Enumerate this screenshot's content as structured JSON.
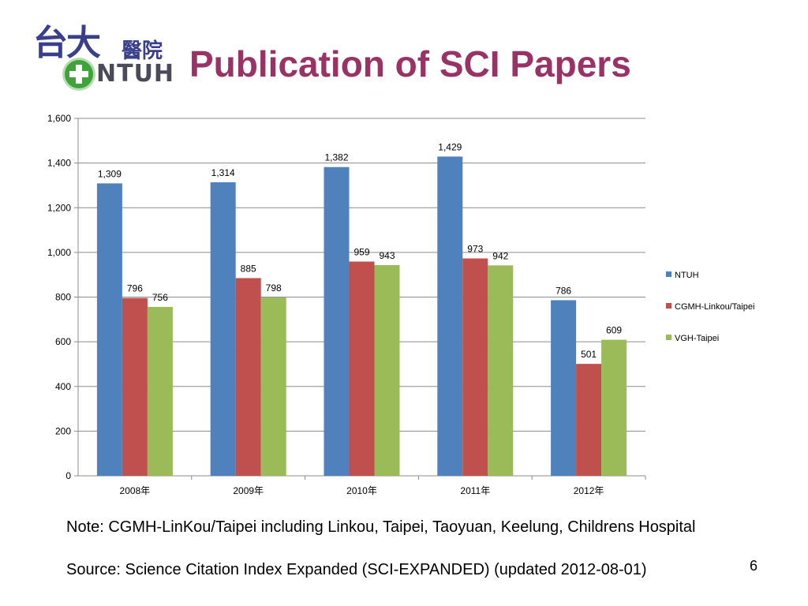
{
  "slide": {
    "title": "Publication of SCI Papers",
    "logo": {
      "text_top": "台大",
      "text_top_small": "醫院",
      "text_bottom": "NTUH"
    },
    "note": "Note: CGMH-LinKou/Taipei including Linkou, Taipei, Taoyuan, Keelung, Childrens Hospital",
    "source": "Source: Science Citation Index Expanded (SCI-EXPANDED) (updated 2012-08-01)",
    "page_number": "6"
  },
  "chart_data": {
    "type": "bar",
    "categories": [
      "2008年",
      "2009年",
      "2010年",
      "2011年",
      "2012年"
    ],
    "series": [
      {
        "name": "NTUH",
        "color": "#4f81bd",
        "values": [
          1309,
          1314,
          1382,
          1429,
          786
        ],
        "labels": [
          "1,309",
          "1,314",
          "1,382",
          "1,429",
          "786"
        ]
      },
      {
        "name": "CGMH-Linkou/Taipei",
        "color": "#c0504d",
        "values": [
          796,
          885,
          959,
          973,
          501
        ],
        "labels": [
          "796",
          "885",
          "959",
          "973",
          "501"
        ]
      },
      {
        "name": "VGH-Taipei",
        "color": "#9bbb59",
        "values": [
          756,
          798,
          943,
          942,
          609
        ],
        "labels": [
          "756",
          "798",
          "943",
          "942",
          "609"
        ]
      }
    ],
    "ylim": [
      0,
      1600
    ],
    "yticks": [
      0,
      200,
      400,
      600,
      800,
      1000,
      1200,
      1400,
      1600
    ],
    "ytick_labels": [
      "0",
      "200",
      "400",
      "600",
      "800",
      "1,000",
      "1,200",
      "1,400",
      "1,600"
    ],
    "grid": true,
    "legend_position": "right"
  }
}
